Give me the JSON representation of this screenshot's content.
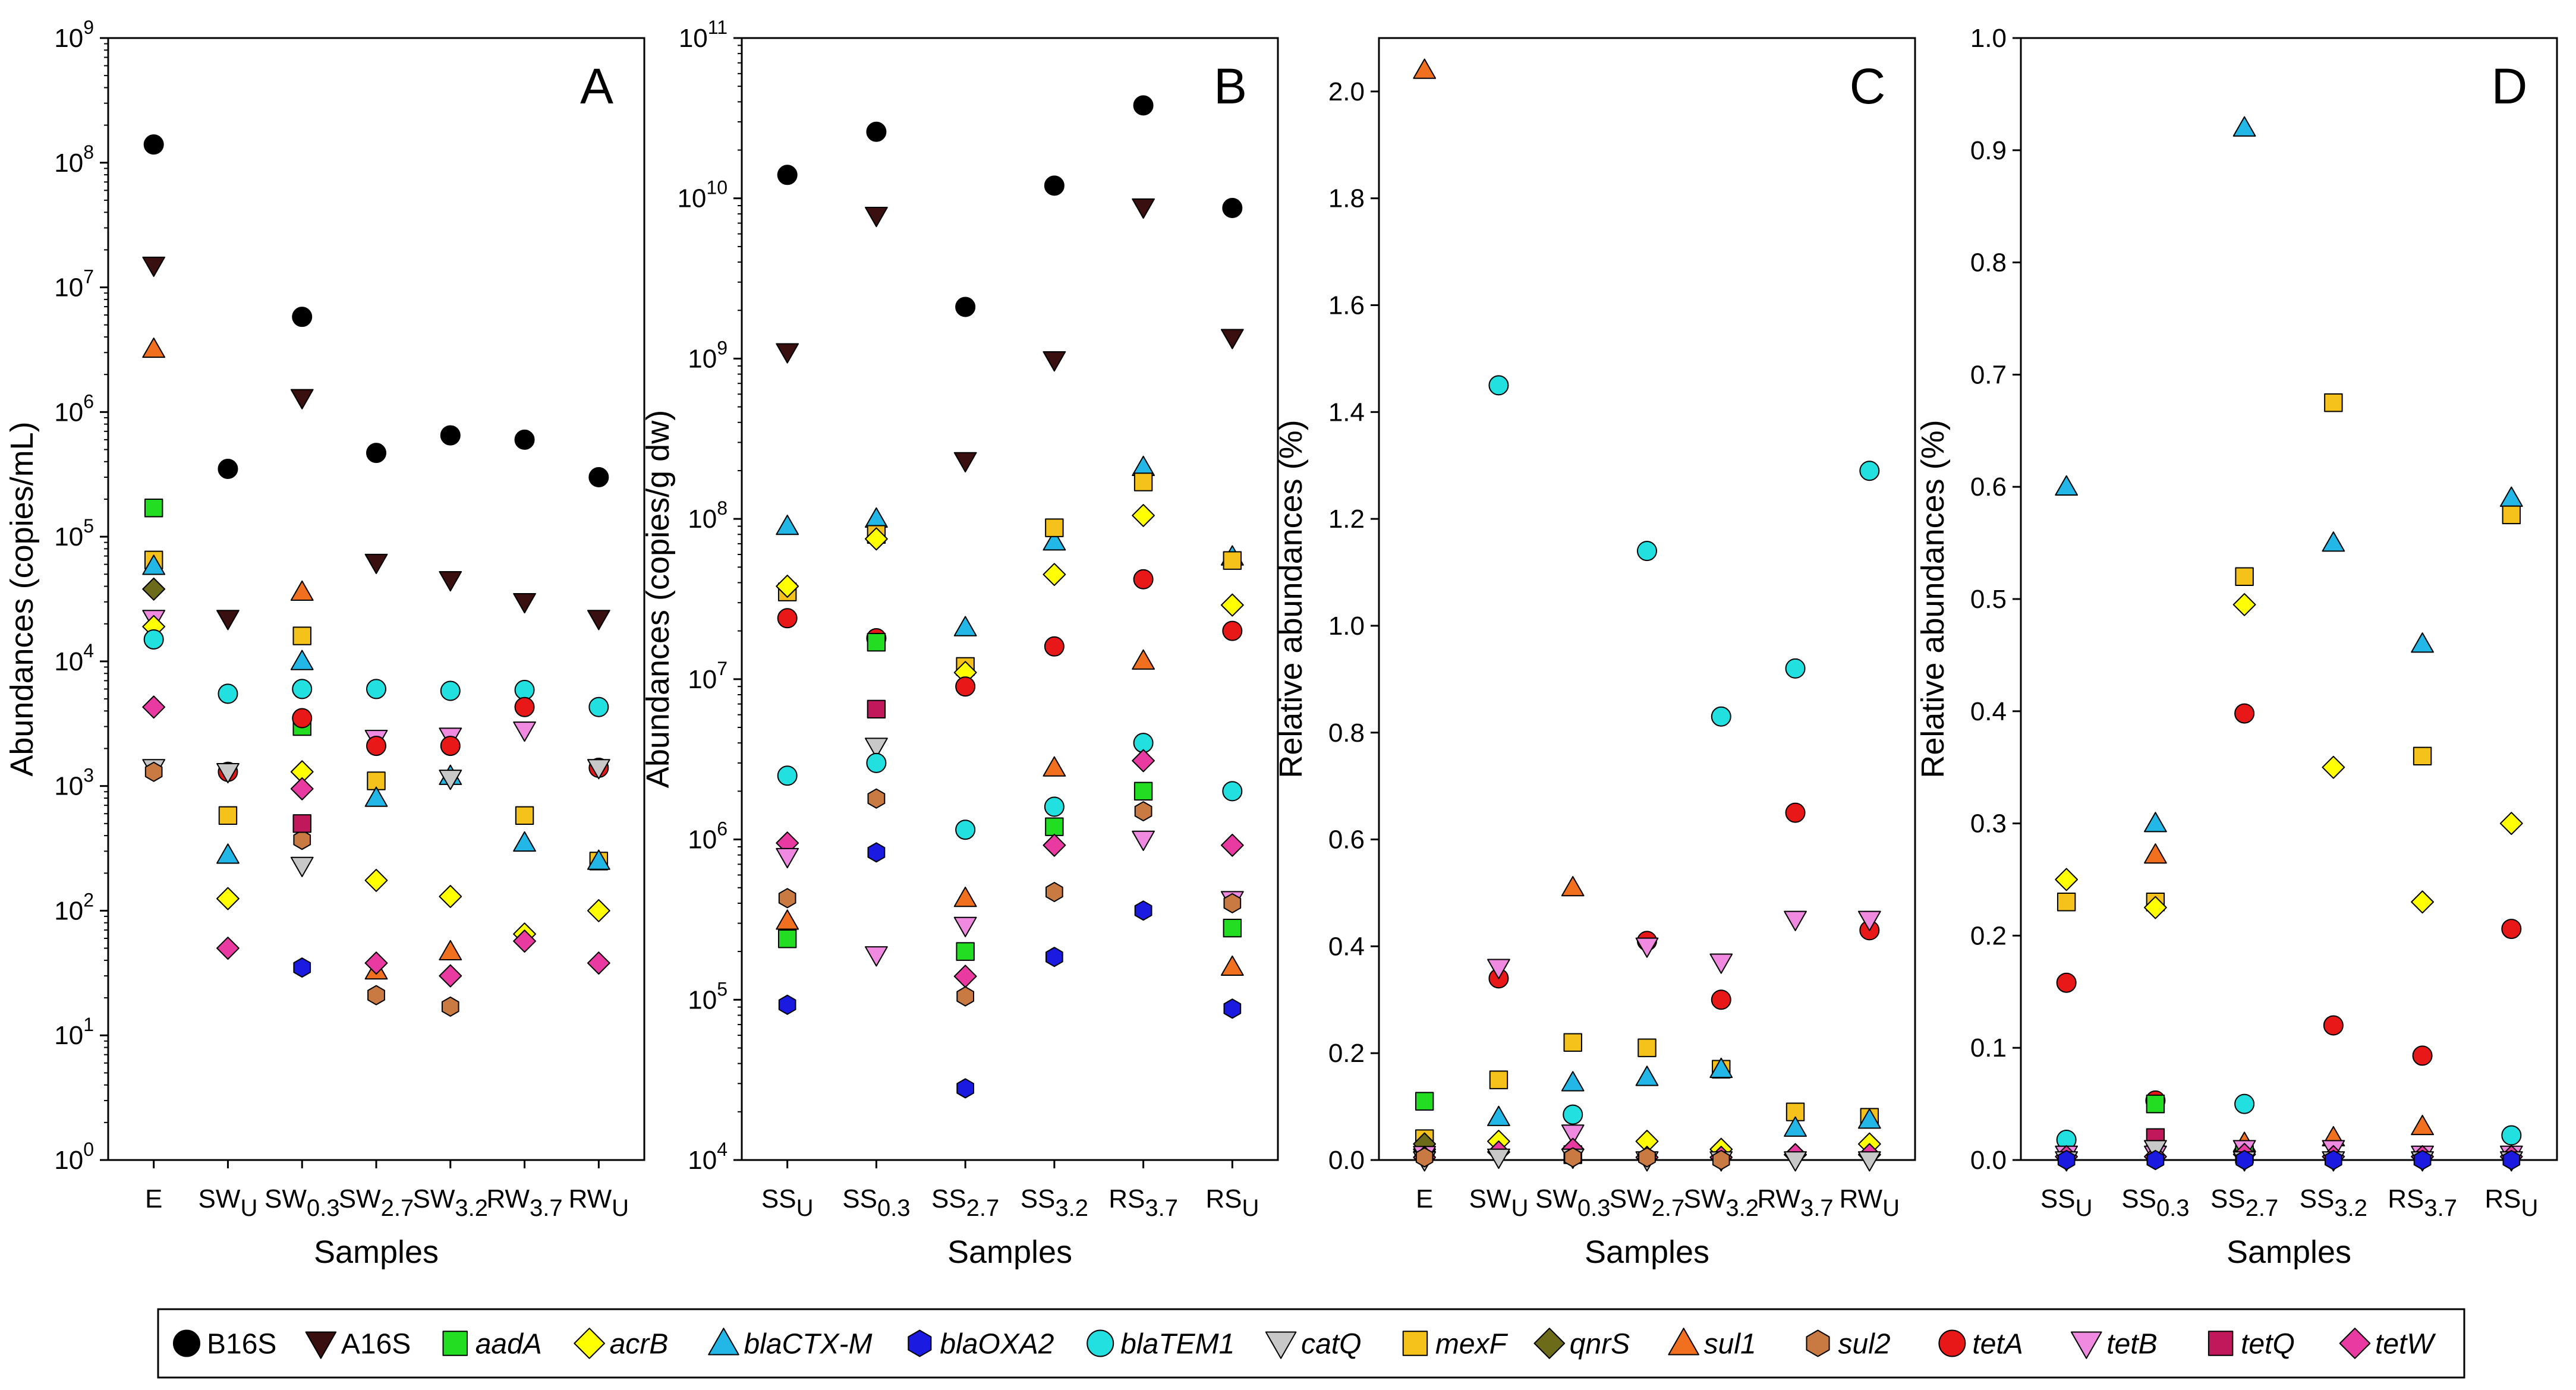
{
  "figure": {
    "panels": [
      "A",
      "B",
      "C",
      "D"
    ]
  },
  "markers": {
    "B16S": {
      "shape": "circle",
      "fill": "#000000"
    },
    "A16S": {
      "shape": "tri-down",
      "fill": "#3a0f0f"
    },
    "aadA": {
      "shape": "square",
      "fill": "#22dd22"
    },
    "acrB": {
      "shape": "diamond",
      "fill": "#ffff00"
    },
    "blaCTX-M": {
      "shape": "tri-up",
      "fill": "#22b7e6"
    },
    "blaOXA2": {
      "shape": "hexagon",
      "fill": "#1a1ae0"
    },
    "blaTEM1": {
      "shape": "circle",
      "fill": "#22e0e0"
    },
    "catQ": {
      "shape": "tri-down",
      "fill": "#c8c8c8"
    },
    "mexF": {
      "shape": "square",
      "fill": "#f5c21b"
    },
    "qnrS": {
      "shape": "diamond",
      "fill": "#6b6b1a"
    },
    "sul1": {
      "shape": "tri-up",
      "fill": "#f07020"
    },
    "sul2": {
      "shape": "hexagon",
      "fill": "#c87a42"
    },
    "tetA": {
      "shape": "circle",
      "fill": "#e81818"
    },
    "tetB": {
      "shape": "tri-down",
      "fill": "#f08ae0"
    },
    "tetQ": {
      "shape": "square",
      "fill": "#c0185a"
    },
    "tetW": {
      "shape": "diamond",
      "fill": "#e83aa0"
    }
  },
  "legend": {
    "items": [
      {
        "key": "B16S",
        "label": "B16S",
        "italic": false
      },
      {
        "key": "A16S",
        "label": "A16S",
        "italic": false
      },
      {
        "key": "aadA",
        "label": "aadA",
        "italic": true
      },
      {
        "key": "acrB",
        "label": "acrB",
        "italic": true
      },
      {
        "key": "blaCTX-M",
        "label": "blaCTX-M",
        "italic": true
      },
      {
        "key": "blaOXA2",
        "label": "blaOXA2",
        "italic": true
      },
      {
        "key": "blaTEM1",
        "label": "blaTEM1",
        "italic": true
      },
      {
        "key": "catQ",
        "label": "catQ",
        "italic": true
      },
      {
        "key": "mexF",
        "label": "mexF",
        "italic": true
      },
      {
        "key": "qnrS",
        "label": "qnrS",
        "italic": true
      },
      {
        "key": "sul1",
        "label": "sul1",
        "italic": true
      },
      {
        "key": "sul2",
        "label": "sul2",
        "italic": true
      },
      {
        "key": "tetA",
        "label": "tetA",
        "italic": true
      },
      {
        "key": "tetB",
        "label": "tetB",
        "italic": true
      },
      {
        "key": "tetQ",
        "label": "tetQ",
        "italic": true
      },
      {
        "key": "tetW",
        "label": "tetW",
        "italic": true
      }
    ]
  },
  "chart_data": [
    {
      "panel": "A",
      "type": "scatter",
      "yscale": "log",
      "ylim": [
        1,
        1000000000
      ],
      "yticks": [
        {
          "v": 1,
          "base": "10",
          "exp": "0"
        },
        {
          "v": 10,
          "base": "10",
          "exp": "1"
        },
        {
          "v": 100,
          "base": "10",
          "exp": "2"
        },
        {
          "v": 1000,
          "base": "10",
          "exp": "3"
        },
        {
          "v": 10000,
          "base": "10",
          "exp": "4"
        },
        {
          "v": 100000,
          "base": "10",
          "exp": "5"
        },
        {
          "v": 1000000,
          "base": "10",
          "exp": "6"
        },
        {
          "v": 10000000,
          "base": "10",
          "exp": "7"
        },
        {
          "v": 100000000,
          "base": "10",
          "exp": "8"
        },
        {
          "v": 1000000000,
          "base": "10",
          "exp": "9"
        }
      ],
      "categories": [
        {
          "main": "E",
          "sub": ""
        },
        {
          "main": "SW",
          "sub": "U"
        },
        {
          "main": "SW",
          "sub": "0.3"
        },
        {
          "main": "SW",
          "sub": "2.7"
        },
        {
          "main": "SW",
          "sub": "3.2"
        },
        {
          "main": "RW",
          "sub": "3.7"
        },
        {
          "main": "RW",
          "sub": "U"
        }
      ],
      "ylabel": "Abundances (copies/mL)",
      "xlabel": "Samples",
      "series": [
        {
          "gene": "B16S",
          "values": [
            140000000,
            350000,
            5800000,
            470000,
            650000,
            600000,
            300000
          ]
        },
        {
          "gene": "A16S",
          "values": [
            15000000,
            22000,
            1300000,
            62000,
            45000,
            30000,
            22000
          ]
        },
        {
          "gene": "sul1",
          "values": [
            3200000,
            null,
            36000,
            33,
            47,
            null,
            null
          ]
        },
        {
          "gene": "aadA",
          "values": [
            170000,
            null,
            3000,
            null,
            null,
            null,
            null
          ]
        },
        {
          "gene": "mexF",
          "values": [
            65000,
            580,
            16000,
            1100,
            null,
            580,
            250
          ]
        },
        {
          "gene": "blaCTX-M",
          "values": [
            58000,
            280,
            10000,
            800,
            1200,
            350,
            250
          ]
        },
        {
          "gene": "qnrS",
          "values": [
            38000,
            null,
            null,
            null,
            null,
            null,
            null
          ]
        },
        {
          "gene": "tetB",
          "values": [
            22000,
            null,
            null,
            2400,
            2500,
            2800,
            null
          ]
        },
        {
          "gene": "acrB",
          "values": [
            19000,
            125,
            1300,
            175,
            130,
            65,
            100
          ]
        },
        {
          "gene": "blaTEM1",
          "values": [
            15000,
            5500,
            6000,
            6000,
            5800,
            5900,
            4300
          ]
        },
        {
          "gene": "tetW",
          "values": [
            4300,
            50,
            950,
            38,
            30,
            57,
            38
          ]
        },
        {
          "gene": "tetA",
          "values": [
            null,
            1300,
            3500,
            2100,
            2100,
            4300,
            1400
          ]
        },
        {
          "gene": "catQ",
          "values": [
            1400,
            1300,
            230,
            null,
            1150,
            null,
            1400
          ]
        },
        {
          "gene": "sul2",
          "values": [
            1300,
            null,
            370,
            21,
            17,
            null,
            null
          ]
        },
        {
          "gene": "tetQ",
          "values": [
            null,
            null,
            500,
            null,
            null,
            null,
            null
          ]
        },
        {
          "gene": "blaOXA2",
          "values": [
            null,
            null,
            35,
            null,
            null,
            null,
            null
          ]
        }
      ]
    },
    {
      "panel": "B",
      "type": "scatter",
      "yscale": "log",
      "ylim": [
        10000,
        100000000000
      ],
      "yticks": [
        {
          "v": 10000,
          "base": "10",
          "exp": "4"
        },
        {
          "v": 100000,
          "base": "10",
          "exp": "5"
        },
        {
          "v": 1000000,
          "base": "10",
          "exp": "6"
        },
        {
          "v": 10000000,
          "base": "10",
          "exp": "7"
        },
        {
          "v": 100000000,
          "base": "10",
          "exp": "8"
        },
        {
          "v": 1000000000,
          "base": "10",
          "exp": "9"
        },
        {
          "v": 10000000000,
          "base": "10",
          "exp": "10"
        },
        {
          "v": 100000000000,
          "base": "10",
          "exp": "11"
        }
      ],
      "categories": [
        {
          "main": "SS",
          "sub": "U"
        },
        {
          "main": "SS",
          "sub": "0.3"
        },
        {
          "main": "SS",
          "sub": "2.7"
        },
        {
          "main": "SS",
          "sub": "3.2"
        },
        {
          "main": "RS",
          "sub": "3.7"
        },
        {
          "main": "RS",
          "sub": "U"
        }
      ],
      "ylabel": "Abundances (copies/g dw)",
      "xlabel": "Samples",
      "series": [
        {
          "gene": "B16S",
          "values": [
            14000000000,
            26000000000,
            2100000000,
            12000000000,
            38000000000,
            8700000000
          ]
        },
        {
          "gene": "A16S",
          "values": [
            1100000000,
            7800000000,
            230000000,
            980000000,
            8800000000,
            1350000000
          ]
        },
        {
          "gene": "blaCTX-M",
          "values": [
            90000000,
            100000000,
            21000000,
            72000000,
            210000000,
            58000000
          ]
        },
        {
          "gene": "mexF",
          "values": [
            35000000,
            80000000,
            12000000,
            88000000,
            170000000,
            55000000
          ]
        },
        {
          "gene": "acrB",
          "values": [
            38000000,
            75000000,
            11000000,
            45000000,
            105000000,
            29000000
          ]
        },
        {
          "gene": "tetA",
          "values": [
            24000000,
            18000000,
            9000000,
            16000000,
            42000000,
            20000000
          ]
        },
        {
          "gene": "aadA",
          "values": [
            240000,
            17000000,
            200000,
            1200000,
            2000000,
            280000
          ]
        },
        {
          "gene": "tetQ",
          "values": [
            null,
            6500000,
            null,
            null,
            null,
            null
          ]
        },
        {
          "gene": "catQ",
          "values": [
            null,
            3800000,
            null,
            null,
            null,
            null
          ]
        },
        {
          "gene": "blaTEM1",
          "values": [
            2500000,
            3000000,
            1150000,
            1600000,
            4000000,
            2000000
          ]
        },
        {
          "gene": "tetW",
          "values": [
            950000,
            null,
            140000,
            920000,
            3100000,
            920000
          ]
        },
        {
          "gene": "tetB",
          "values": [
            780000,
            190000,
            290000,
            null,
            1000000,
            420000
          ]
        },
        {
          "gene": "sul1",
          "values": [
            310000,
            null,
            430000,
            2800000,
            13000000,
            160000
          ]
        },
        {
          "gene": "sul2",
          "values": [
            430000,
            1800000,
            105000,
            470000,
            1500000,
            400000
          ]
        },
        {
          "gene": "blaOXA2",
          "values": [
            93000,
            830000,
            28000,
            185000,
            360000,
            88000
          ]
        }
      ]
    },
    {
      "panel": "C",
      "type": "scatter",
      "yscale": "linear",
      "ylim": [
        0,
        2.1
      ],
      "yticks": [
        {
          "v": 0,
          "label": "0.0"
        },
        {
          "v": 0.2,
          "label": "0.2"
        },
        {
          "v": 0.4,
          "label": "0.4"
        },
        {
          "v": 0.6,
          "label": "0.6"
        },
        {
          "v": 0.8,
          "label": "0.8"
        },
        {
          "v": 1.0,
          "label": "1.0"
        },
        {
          "v": 1.2,
          "label": "1.2"
        },
        {
          "v": 1.4,
          "label": "1.4"
        },
        {
          "v": 1.6,
          "label": "1.6"
        },
        {
          "v": 1.8,
          "label": "1.8"
        },
        {
          "v": 2.0,
          "label": "2.0"
        }
      ],
      "categories": [
        {
          "main": "E",
          "sub": ""
        },
        {
          "main": "SW",
          "sub": "U"
        },
        {
          "main": "SW",
          "sub": "0.3"
        },
        {
          "main": "SW",
          "sub": "2.7"
        },
        {
          "main": "SW",
          "sub": "3.2"
        },
        {
          "main": "RW",
          "sub": "3.7"
        },
        {
          "main": "RW",
          "sub": "U"
        }
      ],
      "ylabel": "Relative abundances (%)",
      "xlabel": "Samples",
      "series": [
        {
          "gene": "sul1",
          "values": [
            2.04,
            null,
            0.51,
            null,
            null,
            null,
            null
          ]
        },
        {
          "gene": "blaTEM1",
          "values": [
            0.01,
            1.45,
            0.085,
            1.14,
            0.83,
            0.92,
            1.29
          ]
        },
        {
          "gene": "aadA",
          "values": [
            0.11,
            null,
            0.01,
            null,
            null,
            null,
            null
          ]
        },
        {
          "gene": "mexF",
          "values": [
            0.04,
            0.15,
            0.22,
            0.21,
            0.17,
            0.09,
            0.08
          ]
        },
        {
          "gene": "blaCTX-M",
          "values": [
            0.03,
            0.08,
            0.145,
            0.155,
            0.17,
            0.06,
            0.075
          ]
        },
        {
          "gene": "acrB",
          "values": [
            0.02,
            0.035,
            0.02,
            0.035,
            0.02,
            0.01,
            0.03
          ]
        },
        {
          "gene": "qnrS",
          "values": [
            0.03,
            null,
            null,
            null,
            null,
            null,
            null
          ]
        },
        {
          "gene": "tetA",
          "values": [
            null,
            0.34,
            null,
            0.41,
            0.3,
            0.65,
            0.43
          ]
        },
        {
          "gene": "tetB",
          "values": [
            0.01,
            0.36,
            0.05,
            0.4,
            0.37,
            0.45,
            0.45
          ]
        },
        {
          "gene": "tetW",
          "values": [
            0.005,
            0.015,
            0.02,
            0.005,
            0.005,
            0.01,
            0.01
          ]
        },
        {
          "gene": "catQ",
          "values": [
            0.0,
            0.005,
            0.005,
            0.0,
            0.0,
            0.0,
            0.0
          ]
        },
        {
          "gene": "sul2",
          "values": [
            0.005,
            null,
            0.005,
            0.005,
            0.0,
            null,
            null
          ]
        }
      ]
    },
    {
      "panel": "D",
      "type": "scatter",
      "yscale": "linear",
      "ylim": [
        0,
        1.0
      ],
      "yticks": [
        {
          "v": 0,
          "label": "0.0"
        },
        {
          "v": 0.1,
          "label": "0.1"
        },
        {
          "v": 0.2,
          "label": "0.2"
        },
        {
          "v": 0.3,
          "label": "0.3"
        },
        {
          "v": 0.4,
          "label": "0.4"
        },
        {
          "v": 0.5,
          "label": "0.5"
        },
        {
          "v": 0.6,
          "label": "0.6"
        },
        {
          "v": 0.7,
          "label": "0.7"
        },
        {
          "v": 0.8,
          "label": "0.8"
        },
        {
          "v": 0.9,
          "label": "0.9"
        },
        {
          "v": 1.0,
          "label": "1.0"
        }
      ],
      "categories": [
        {
          "main": "SS",
          "sub": "U"
        },
        {
          "main": "SS",
          "sub": "0.3"
        },
        {
          "main": "SS",
          "sub": "2.7"
        },
        {
          "main": "SS",
          "sub": "3.2"
        },
        {
          "main": "RS",
          "sub": "3.7"
        },
        {
          "main": "RS",
          "sub": "U"
        }
      ],
      "ylabel": "Relative abundances (%)",
      "xlabel": "Samples",
      "series": [
        {
          "gene": "blaCTX-M",
          "values": [
            0.6,
            0.3,
            0.92,
            0.55,
            0.46,
            0.59
          ]
        },
        {
          "gene": "mexF",
          "values": [
            0.23,
            0.23,
            0.52,
            0.675,
            0.36,
            0.575
          ]
        },
        {
          "gene": "acrB",
          "values": [
            0.25,
            0.225,
            0.495,
            0.35,
            0.23,
            0.3
          ]
        },
        {
          "gene": "sul1",
          "values": [
            null,
            0.272,
            0.015,
            0.02,
            0.03,
            null
          ]
        },
        {
          "gene": "tetA",
          "values": [
            0.158,
            0.053,
            0.398,
            0.12,
            0.093,
            0.206
          ]
        },
        {
          "gene": "aadA",
          "values": [
            null,
            0.05,
            0.005,
            null,
            null,
            null
          ]
        },
        {
          "gene": "blaTEM1",
          "values": [
            0.018,
            null,
            0.05,
            null,
            null,
            0.022
          ]
        },
        {
          "gene": "tetQ",
          "values": [
            null,
            0.02,
            null,
            null,
            null,
            null
          ]
        },
        {
          "gene": "tetB",
          "values": [
            0.005,
            0.005,
            0.01,
            0.01,
            0.005,
            0.005
          ]
        },
        {
          "gene": "tetW",
          "values": [
            0.003,
            0.003,
            0.005,
            0.003,
            0.003,
            0.003
          ]
        },
        {
          "gene": "catQ",
          "values": [
            0.0,
            0.01,
            0.0,
            0.0,
            0.0,
            0.0
          ]
        },
        {
          "gene": "blaOXA2",
          "values": [
            0.0,
            0.0,
            0.0,
            0.0,
            0.0,
            0.0
          ]
        }
      ]
    }
  ]
}
